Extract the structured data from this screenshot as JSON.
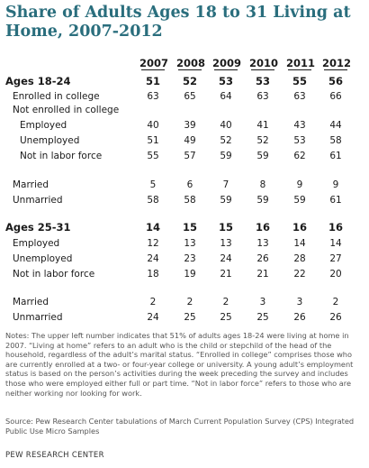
{
  "title": "Share of Adults Ages 18 to 31 Living at Home, 2007-2012",
  "years": [
    "2007",
    "2008",
    "2009",
    "2010",
    "2011",
    "2012"
  ],
  "rows": [
    {
      "label": "Ages 18-24",
      "bold": true,
      "indent": 0,
      "values": [
        "51",
        "52",
        "53",
        "53",
        "55",
        "56"
      ]
    },
    {
      "label": "Enrolled in college",
      "indent": 1,
      "values": [
        "63",
        "65",
        "64",
        "63",
        "63",
        "66"
      ]
    },
    {
      "label": "Not enrolled in college",
      "indent": 1,
      "values": [
        "",
        "",
        "",
        "",
        "",
        ""
      ]
    },
    {
      "label": "Employed",
      "indent": 2,
      "values": [
        "40",
        "39",
        "40",
        "41",
        "43",
        "44"
      ]
    },
    {
      "label": "Unemployed",
      "indent": 2,
      "values": [
        "51",
        "49",
        "52",
        "52",
        "53",
        "58"
      ]
    },
    {
      "label": "Not in labor force",
      "indent": 2,
      "values": [
        "55",
        "57",
        "59",
        "59",
        "62",
        "61"
      ]
    },
    {
      "label": "Married",
      "indent": 1,
      "values": [
        "5",
        "6",
        "7",
        "8",
        "9",
        "9"
      ]
    },
    {
      "label": "Unmarried",
      "indent": 1,
      "values": [
        "58",
        "58",
        "59",
        "59",
        "59",
        "61"
      ]
    },
    {
      "label": "Ages 25-31",
      "bold": true,
      "indent": 0,
      "values": [
        "14",
        "15",
        "15",
        "16",
        "16",
        "16"
      ]
    },
    {
      "label": "Employed",
      "indent": 1,
      "values": [
        "12",
        "13",
        "13",
        "13",
        "14",
        "14"
      ]
    },
    {
      "label": "Unemployed",
      "indent": 1,
      "values": [
        "24",
        "23",
        "24",
        "26",
        "28",
        "27"
      ]
    },
    {
      "label": "Not in labor force",
      "indent": 1,
      "values": [
        "18",
        "19",
        "21",
        "21",
        "22",
        "20"
      ]
    },
    {
      "label": "Married",
      "indent": 1,
      "values": [
        "2",
        "2",
        "2",
        "3",
        "3",
        "2"
      ]
    },
    {
      "label": "Unmarried",
      "indent": 1,
      "values": [
        "24",
        "25",
        "25",
        "25",
        "26",
        "26"
      ]
    }
  ],
  "notes": "Notes: The upper left number indicates that 51% of adults ages 18-24 were living at home in 2007. “Living at home” refers to an adult who is the child or stepchild of the head of the household, regardless of the adult’s marital status. “Enrolled in college” comprises those who are currently enrolled at a two- or four-year college or university. A young adult’s employment status is based on the person’s activities during the week preceding the survey and includes those who were employed either full or part time. “Not in labor force” refers to those who are neither working nor looking for work.",
  "source": "Source: Pew Research Center tabulations of March Current Population Survey (CPS) Integrated Public Use Micro Samples",
  "org": "PEW RESEARCH CENTER"
}
